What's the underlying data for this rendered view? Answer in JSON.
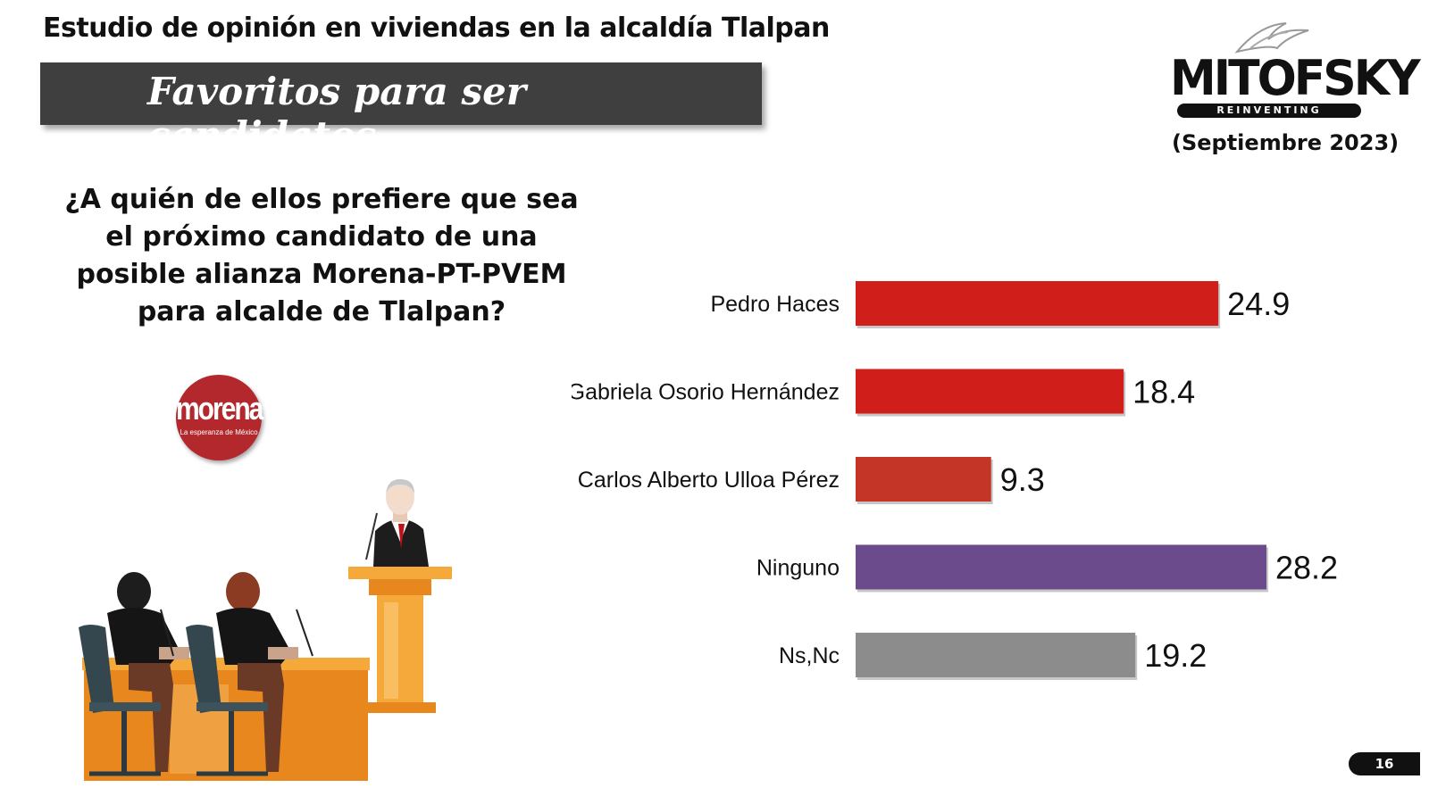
{
  "header": {
    "title": "Estudio de opinión en viviendas en la alcaldía Tlalpan",
    "banner": "Favoritos para ser candidatos"
  },
  "brand": {
    "name": "MITOFSKY",
    "tagline": "REINVENTING RESEARCH",
    "date": "(Septiembre 2023)"
  },
  "question": "¿A quién de ellos prefiere que sea el próximo candidato de una posible alianza Morena-PT-PVEM para alcalde de Tlalpan?",
  "party_logo": {
    "name": "morena",
    "tagline": "La esperanza de México"
  },
  "chart_data": {
    "type": "bar",
    "orientation": "horizontal",
    "categories": [
      "Pedro Haces",
      "Gabriela Osorio Hernández",
      "Carlos Alberto Ulloa Pérez",
      "Ninguno",
      "Ns,Nc"
    ],
    "values": [
      24.9,
      18.4,
      9.3,
      28.2,
      19.2
    ],
    "value_labels": [
      "24.9",
      "18.4",
      "9.3",
      "28.2",
      "19.2"
    ],
    "colors": [
      "#d01e1a",
      "#d01e1a",
      "#c43527",
      "#6b4b8b",
      "#8c8c8c"
    ],
    "title": "",
    "xlabel": "",
    "ylabel": "",
    "xlim": [
      0,
      28.2
    ],
    "grid": false,
    "legend": "none"
  },
  "page_number": "16"
}
